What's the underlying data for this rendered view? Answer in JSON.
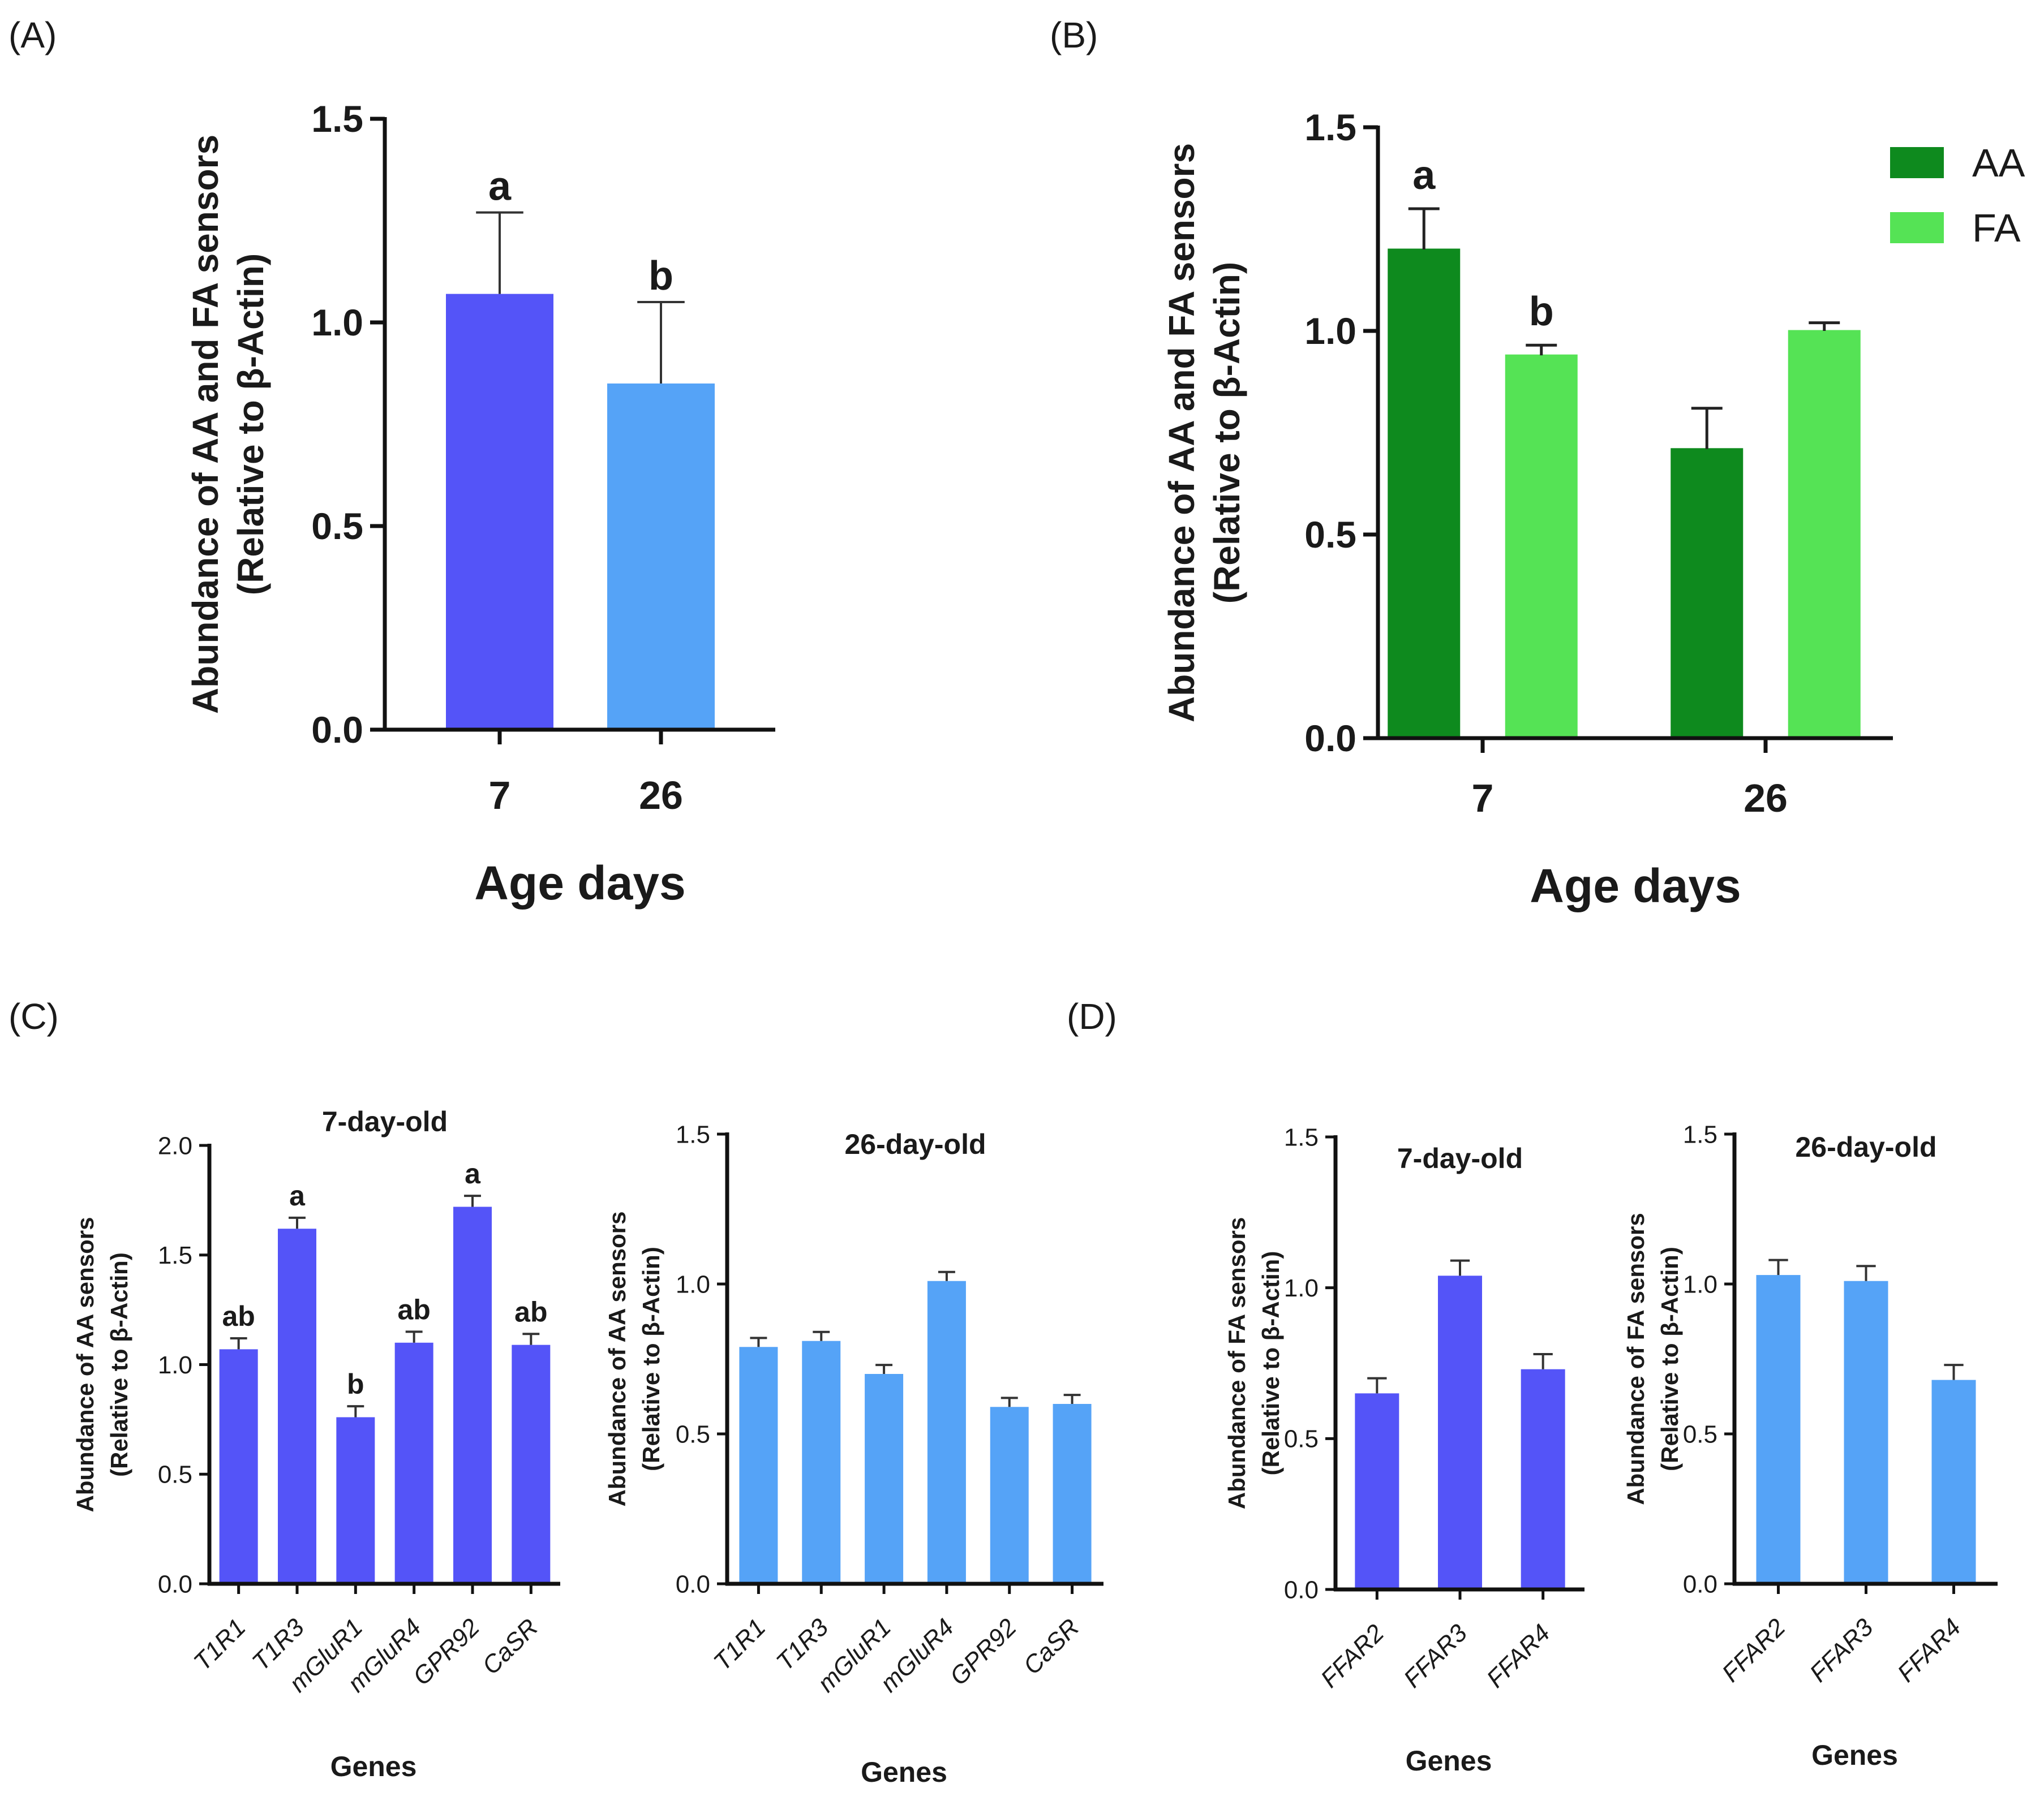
{
  "colors": {
    "blue_dark": "#5454f8",
    "blue_light": "#55a3f7",
    "green_dark": "#0e8a1e",
    "green_light": "#55e355",
    "axis": "#111111"
  },
  "chart_data": [
    {
      "id": "A",
      "type": "bar",
      "panel_label": "(A)",
      "title": "",
      "ylabel_line1": "Abundance of AA and FA sensors",
      "ylabel_line2": "(Relative to β-Actin)",
      "xlabel": "Age days",
      "ylim": [
        0,
        1.5
      ],
      "yticks": [
        "0.0",
        "0.5",
        "1.0",
        "1.5"
      ],
      "categories": [
        "7",
        "26"
      ],
      "values": [
        1.07,
        0.85
      ],
      "errors": [
        0.2,
        0.2
      ],
      "letters": [
        "a",
        "b"
      ],
      "bar_colors": [
        "#5454f8",
        "#55a3f7"
      ]
    },
    {
      "id": "B",
      "type": "bar",
      "panel_label": "(B)",
      "title": "",
      "ylabel_line1": "Abundance of AA and FA sensors",
      "ylabel_line2": "(Relative to β-Actin)",
      "xlabel": "Age days",
      "ylim": [
        0,
        1.5
      ],
      "yticks": [
        "0.0",
        "0.5",
        "1.0",
        "1.5"
      ],
      "categories": [
        "7",
        "26"
      ],
      "series": [
        {
          "name": "AA",
          "values": [
            1.2,
            0.71
          ],
          "errors": [
            0.1,
            0.1
          ],
          "letters": [
            "a",
            ""
          ],
          "color": "#0e8a1e"
        },
        {
          "name": "FA",
          "values": [
            0.94,
            1.0
          ],
          "errors": [
            0.025,
            0.02
          ],
          "letters": [
            "b",
            ""
          ],
          "color": "#55e355"
        }
      ],
      "legend_position": "top-right"
    },
    {
      "id": "C1",
      "type": "bar",
      "panel_label": "(C)",
      "title": "7-day-old",
      "ylabel_line1": "Abundance of AA sensors",
      "ylabel_line2": "(Relative to β-Actin)",
      "xlabel": "Genes",
      "ylim": [
        0,
        2.0
      ],
      "yticks": [
        "0.0",
        "0.5",
        "1.0",
        "1.5",
        "2.0"
      ],
      "categories": [
        "T1R1",
        "T1R3",
        "mGluR1",
        "mGluR4",
        "GPR92",
        "CaSR"
      ],
      "values": [
        1.07,
        1.62,
        0.76,
        1.1,
        1.72,
        1.09
      ],
      "errors": [
        0.05,
        0.05,
        0.05,
        0.05,
        0.05,
        0.05
      ],
      "letters": [
        "ab",
        "a",
        "b",
        "ab",
        "a",
        "ab"
      ],
      "bar_color": "#5454f8"
    },
    {
      "id": "C2",
      "type": "bar",
      "panel_label": "",
      "title": "26-day-old",
      "ylabel_line1": "Abundance of AA sensors",
      "ylabel_line2": "(Relative to β-Actin)",
      "xlabel": "Genes",
      "ylim": [
        0,
        1.5
      ],
      "yticks": [
        "0.0",
        "0.5",
        "1.0",
        "1.5"
      ],
      "categories": [
        "T1R1",
        "T1R3",
        "mGluR1",
        "mGluR4",
        "GPR92",
        "CaSR"
      ],
      "values": [
        0.79,
        0.81,
        0.7,
        1.01,
        0.59,
        0.6
      ],
      "errors": [
        0.03,
        0.03,
        0.03,
        0.03,
        0.03,
        0.03
      ],
      "letters": [
        "",
        "",
        "",
        "",
        "",
        ""
      ],
      "bar_color": "#55a3f7"
    },
    {
      "id": "D1",
      "type": "bar",
      "panel_label": "(D)",
      "title": "7-day-old",
      "ylabel_line1": "Abundance of  FA sensors",
      "ylabel_line2": "(Relative to β-Actin)",
      "xlabel": "Genes",
      "ylim": [
        0,
        1.5
      ],
      "yticks": [
        "0.0",
        "0.5",
        "1.0",
        "1.5"
      ],
      "categories": [
        "FFAR2",
        "FFAR3",
        "FFAR4"
      ],
      "values": [
        0.65,
        1.04,
        0.73
      ],
      "errors": [
        0.05,
        0.05,
        0.05
      ],
      "letters": [
        "",
        "",
        ""
      ],
      "bar_color": "#5454f8"
    },
    {
      "id": "D2",
      "type": "bar",
      "panel_label": "",
      "title": "26-day-old",
      "ylabel_line1": "Abundance of  FA sensors",
      "ylabel_line2": "(Relative to β-Actin)",
      "xlabel": "Genes",
      "ylim": [
        0,
        1.5
      ],
      "yticks": [
        "0.0",
        "0.5",
        "1.0",
        "1.5"
      ],
      "categories": [
        "FFAR2",
        "FFAR3",
        "FFAR4"
      ],
      "values": [
        1.03,
        1.01,
        0.68
      ],
      "errors": [
        0.05,
        0.05,
        0.05
      ],
      "letters": [
        "",
        "",
        ""
      ],
      "bar_color": "#55a3f7"
    }
  ]
}
